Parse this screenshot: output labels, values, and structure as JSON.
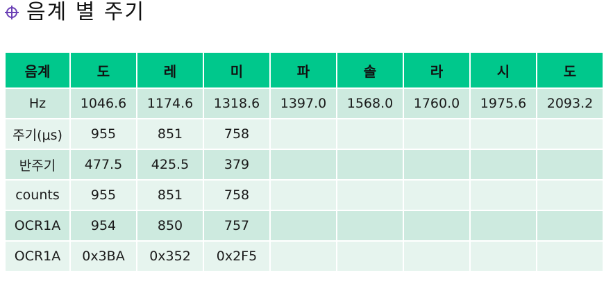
{
  "title": "음계 별 주기",
  "table": {
    "headers": [
      "음계",
      "도",
      "레",
      "미",
      "파",
      "솔",
      "라",
      "시",
      "도"
    ],
    "rows": [
      [
        "Hz",
        "1046.6",
        "1174.6",
        "1318.6",
        "1397.0",
        "1568.0",
        "1760.0",
        "1975.6",
        "2093.2"
      ],
      [
        "주기(μs)",
        "955",
        "851",
        "758",
        "",
        "",
        "",
        "",
        ""
      ],
      [
        "반주기",
        "477.5",
        "425.5",
        "379",
        "",
        "",
        "",
        "",
        ""
      ],
      [
        "counts",
        "955",
        "851",
        "758",
        "",
        "",
        "",
        "",
        ""
      ],
      [
        "OCR1A",
        "954",
        "850",
        "757",
        "",
        "",
        "",
        "",
        ""
      ],
      [
        "OCR1A",
        "0x3BA",
        "0x352",
        "0x2F5",
        "",
        "",
        "",
        "",
        ""
      ]
    ]
  },
  "colors": {
    "header_bg": "#00c88c",
    "row_dark": "#cdeadf",
    "row_light": "#e6f4ee",
    "bullet": "#6a3fb5"
  },
  "icons": {
    "bullet": "crosshair-circle-icon"
  }
}
